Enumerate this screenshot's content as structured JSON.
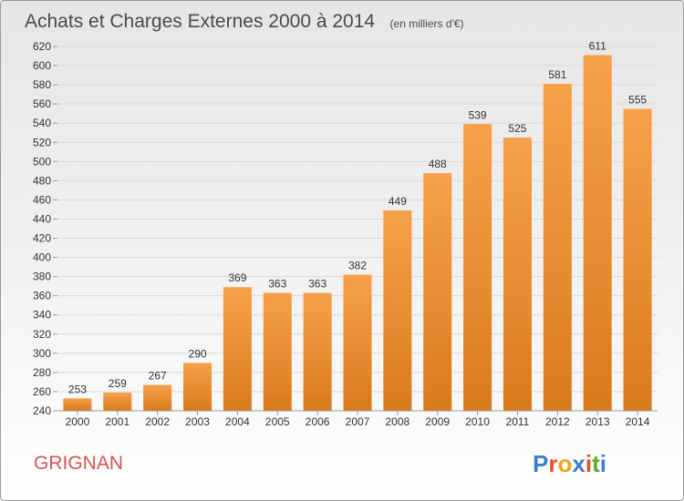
{
  "chart_data": {
    "type": "bar",
    "title": "Achats et Charges Externes 2000 à 2014",
    "subtitle": "(en milliers d'€)",
    "categories": [
      "2000",
      "2001",
      "2002",
      "2003",
      "2004",
      "2005",
      "2006",
      "2007",
      "2008",
      "2009",
      "2010",
      "2011",
      "2012",
      "2013",
      "2014"
    ],
    "values": [
      253,
      259,
      267,
      290,
      369,
      363,
      363,
      382,
      449,
      488,
      539,
      525,
      581,
      611,
      555
    ],
    "ylim": [
      240,
      620
    ],
    "yticks": [
      240,
      260,
      280,
      300,
      320,
      340,
      360,
      380,
      400,
      420,
      440,
      460,
      480,
      500,
      520,
      540,
      560,
      580,
      600,
      620
    ],
    "grid": true,
    "xlabel": "",
    "ylabel": "",
    "bar_color_light": "#f6a14a",
    "bar_color_dark": "#d97a1c"
  },
  "footer": {
    "town": "GRIGNAN",
    "brand_letters": [
      "P",
      "r",
      "o",
      "x",
      "i",
      "t",
      "i"
    ],
    "brand_colors": [
      "#3a7fd0",
      "#e8501e",
      "#f0a21f",
      "#3a7fd0",
      "#e8501e",
      "#5aaa2a",
      "#3a7fd0"
    ]
  }
}
